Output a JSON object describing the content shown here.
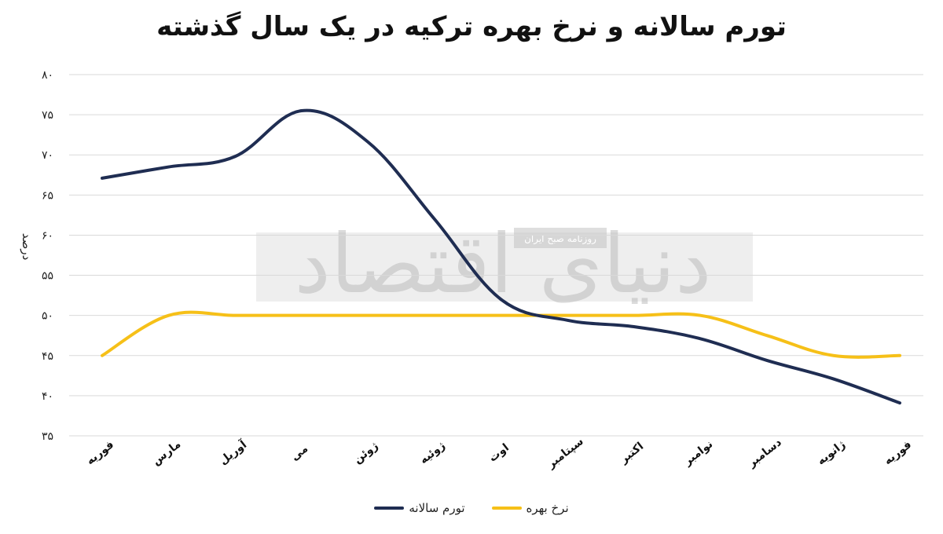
{
  "chart_data": {
    "type": "line",
    "title": "تورم سالانه و نرخ بهره ترکیه در یک سال گذشته",
    "ylabel": "درصد",
    "xlabel": "",
    "ylim": [
      35,
      80
    ],
    "yticks": [
      "۳۵",
      "۴۰",
      "۴۵",
      "۵۰",
      "۵۵",
      "۶۰",
      "۶۵",
      "۷۰",
      "۷۵",
      "۸۰"
    ],
    "ytick_values": [
      35,
      40,
      45,
      50,
      55,
      60,
      65,
      70,
      75,
      80
    ],
    "categories": [
      "فوریه",
      "مارس",
      "آوریل",
      "می",
      "ژوئن",
      "ژوئیه",
      "اوت",
      "سپتامبر",
      "اکتبر",
      "نوامبر",
      "دسامبر",
      "ژانویه",
      "فوریه"
    ],
    "series": [
      {
        "name": "تورم سالانه",
        "color": "#1f2d52",
        "values": [
          67.1,
          68.5,
          69.8,
          75.5,
          71.6,
          62.0,
          52.0,
          49.4,
          48.6,
          47.1,
          44.4,
          42.1,
          39.1
        ]
      },
      {
        "name": "نرخ بهره",
        "color": "#f6c018",
        "values": [
          45,
          50,
          50,
          50,
          50,
          50,
          50,
          50,
          50,
          50,
          47.5,
          45,
          45
        ]
      }
    ],
    "grid": true,
    "legend": "bottom-center"
  },
  "watermark": {
    "main": "دنیای اقتصاد",
    "sub": "روزنامه صبح ایران"
  }
}
